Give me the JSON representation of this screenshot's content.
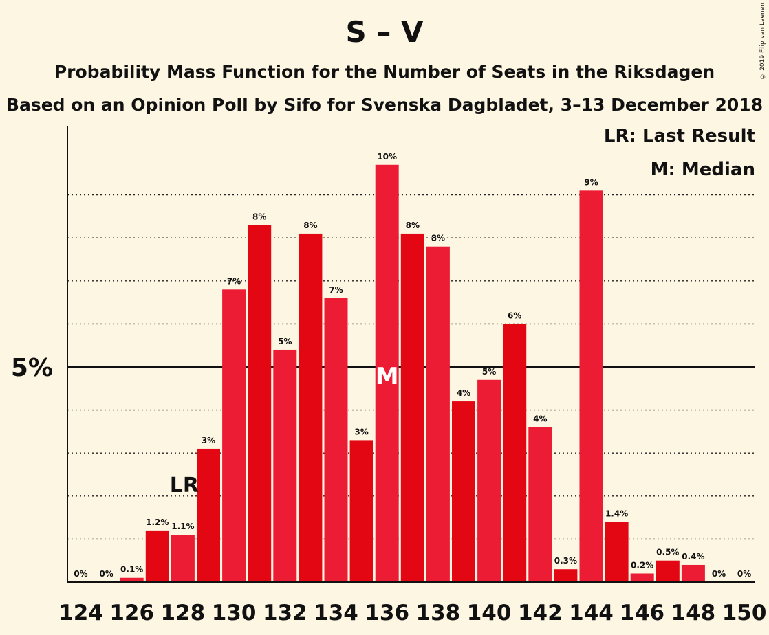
{
  "chart_data": {
    "type": "bar",
    "title": "S – V",
    "subtitle": "Probability Mass Function for the Number of Seats in the Riksdagen",
    "subtitle2": "Based on an Opinion Poll by Sifo for Svenska Dagbladet, 3–13 December 2018",
    "copyright": "© 2019 Filip van Laenen",
    "legend": [
      "LR: Last Result",
      "M: Median"
    ],
    "x": [
      124,
      125,
      126,
      127,
      128,
      129,
      130,
      131,
      132,
      133,
      134,
      135,
      136,
      137,
      138,
      139,
      140,
      141,
      142,
      143,
      144,
      145,
      146,
      147,
      148,
      149,
      150
    ],
    "values": [
      0,
      0,
      0.1,
      1.2,
      1.1,
      3.1,
      6.8,
      8.3,
      5.4,
      8.1,
      6.6,
      3.3,
      9.7,
      8.1,
      7.8,
      4.2,
      4.7,
      6.0,
      3.6,
      0.3,
      9.1,
      1.4,
      0.2,
      0.5,
      0.4,
      0,
      0
    ],
    "labels": [
      "0%",
      "0%",
      "0.1%",
      "1.2%",
      "1.1%",
      "3%",
      "7%",
      "8%",
      "5%",
      "8%",
      "7%",
      "3%",
      "10%",
      "8%",
      "8%",
      "4%",
      "5%",
      "6%",
      "4%",
      "0.3%",
      "9%",
      "1.4%",
      "0.2%",
      "0.5%",
      "0.4%",
      "0%",
      "0%"
    ],
    "x_tick_labels": [
      "124",
      "126",
      "128",
      "130",
      "132",
      "134",
      "136",
      "138",
      "140",
      "142",
      "144",
      "146",
      "148",
      "150"
    ],
    "y_tick_label": "5%",
    "ylim": [
      0,
      10.5
    ],
    "last_result_seat": 128,
    "last_result_label": "LR",
    "median_seat": 136,
    "median_label": "M",
    "grid": "dotted horizontal",
    "legend_position": "top-right",
    "colors": {
      "bar_a": "#e30613",
      "bar_b": "#ec1c35",
      "background": "#fdf6e3"
    }
  }
}
